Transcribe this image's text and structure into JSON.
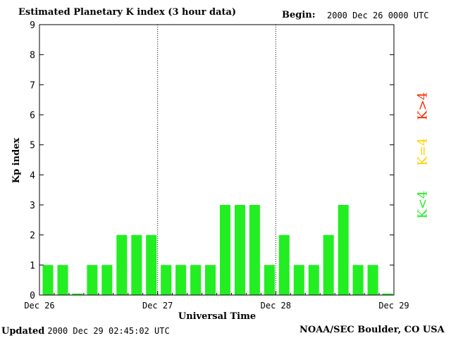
{
  "header": {
    "title": "Estimated Planetary K index (3 hour data)",
    "begin_label": "Begin:",
    "begin_value": "2000 Dec 26 0000 UTC"
  },
  "footer": {
    "updated_label": "Updated",
    "updated_value": "2000 Dec 29 02:45:02 UTC",
    "source": "NOAA/SEC Boulder, CO USA"
  },
  "legend": [
    {
      "label": "K>4",
      "color": "#ff2a00"
    },
    {
      "label": "K=4",
      "color": "#ffd000"
    },
    {
      "label": "K<4",
      "color": "#22ee22"
    }
  ],
  "chart_data": {
    "type": "bar",
    "xlabel": "Universal Time",
    "ylabel": "Kp index",
    "ylim": [
      0,
      9
    ],
    "yticks": [
      0,
      1,
      2,
      3,
      4,
      5,
      6,
      7,
      8,
      9
    ],
    "day_labels": [
      "Dec 26",
      "Dec 27",
      "Dec 28",
      "Dec 29"
    ],
    "values": [
      1,
      1,
      0.05,
      1,
      1,
      2,
      2,
      2,
      1,
      1,
      1,
      1,
      3,
      3,
      3,
      1,
      2,
      1,
      1,
      2,
      3,
      1,
      1,
      0.05
    ],
    "bar_color": "#22ee22"
  }
}
